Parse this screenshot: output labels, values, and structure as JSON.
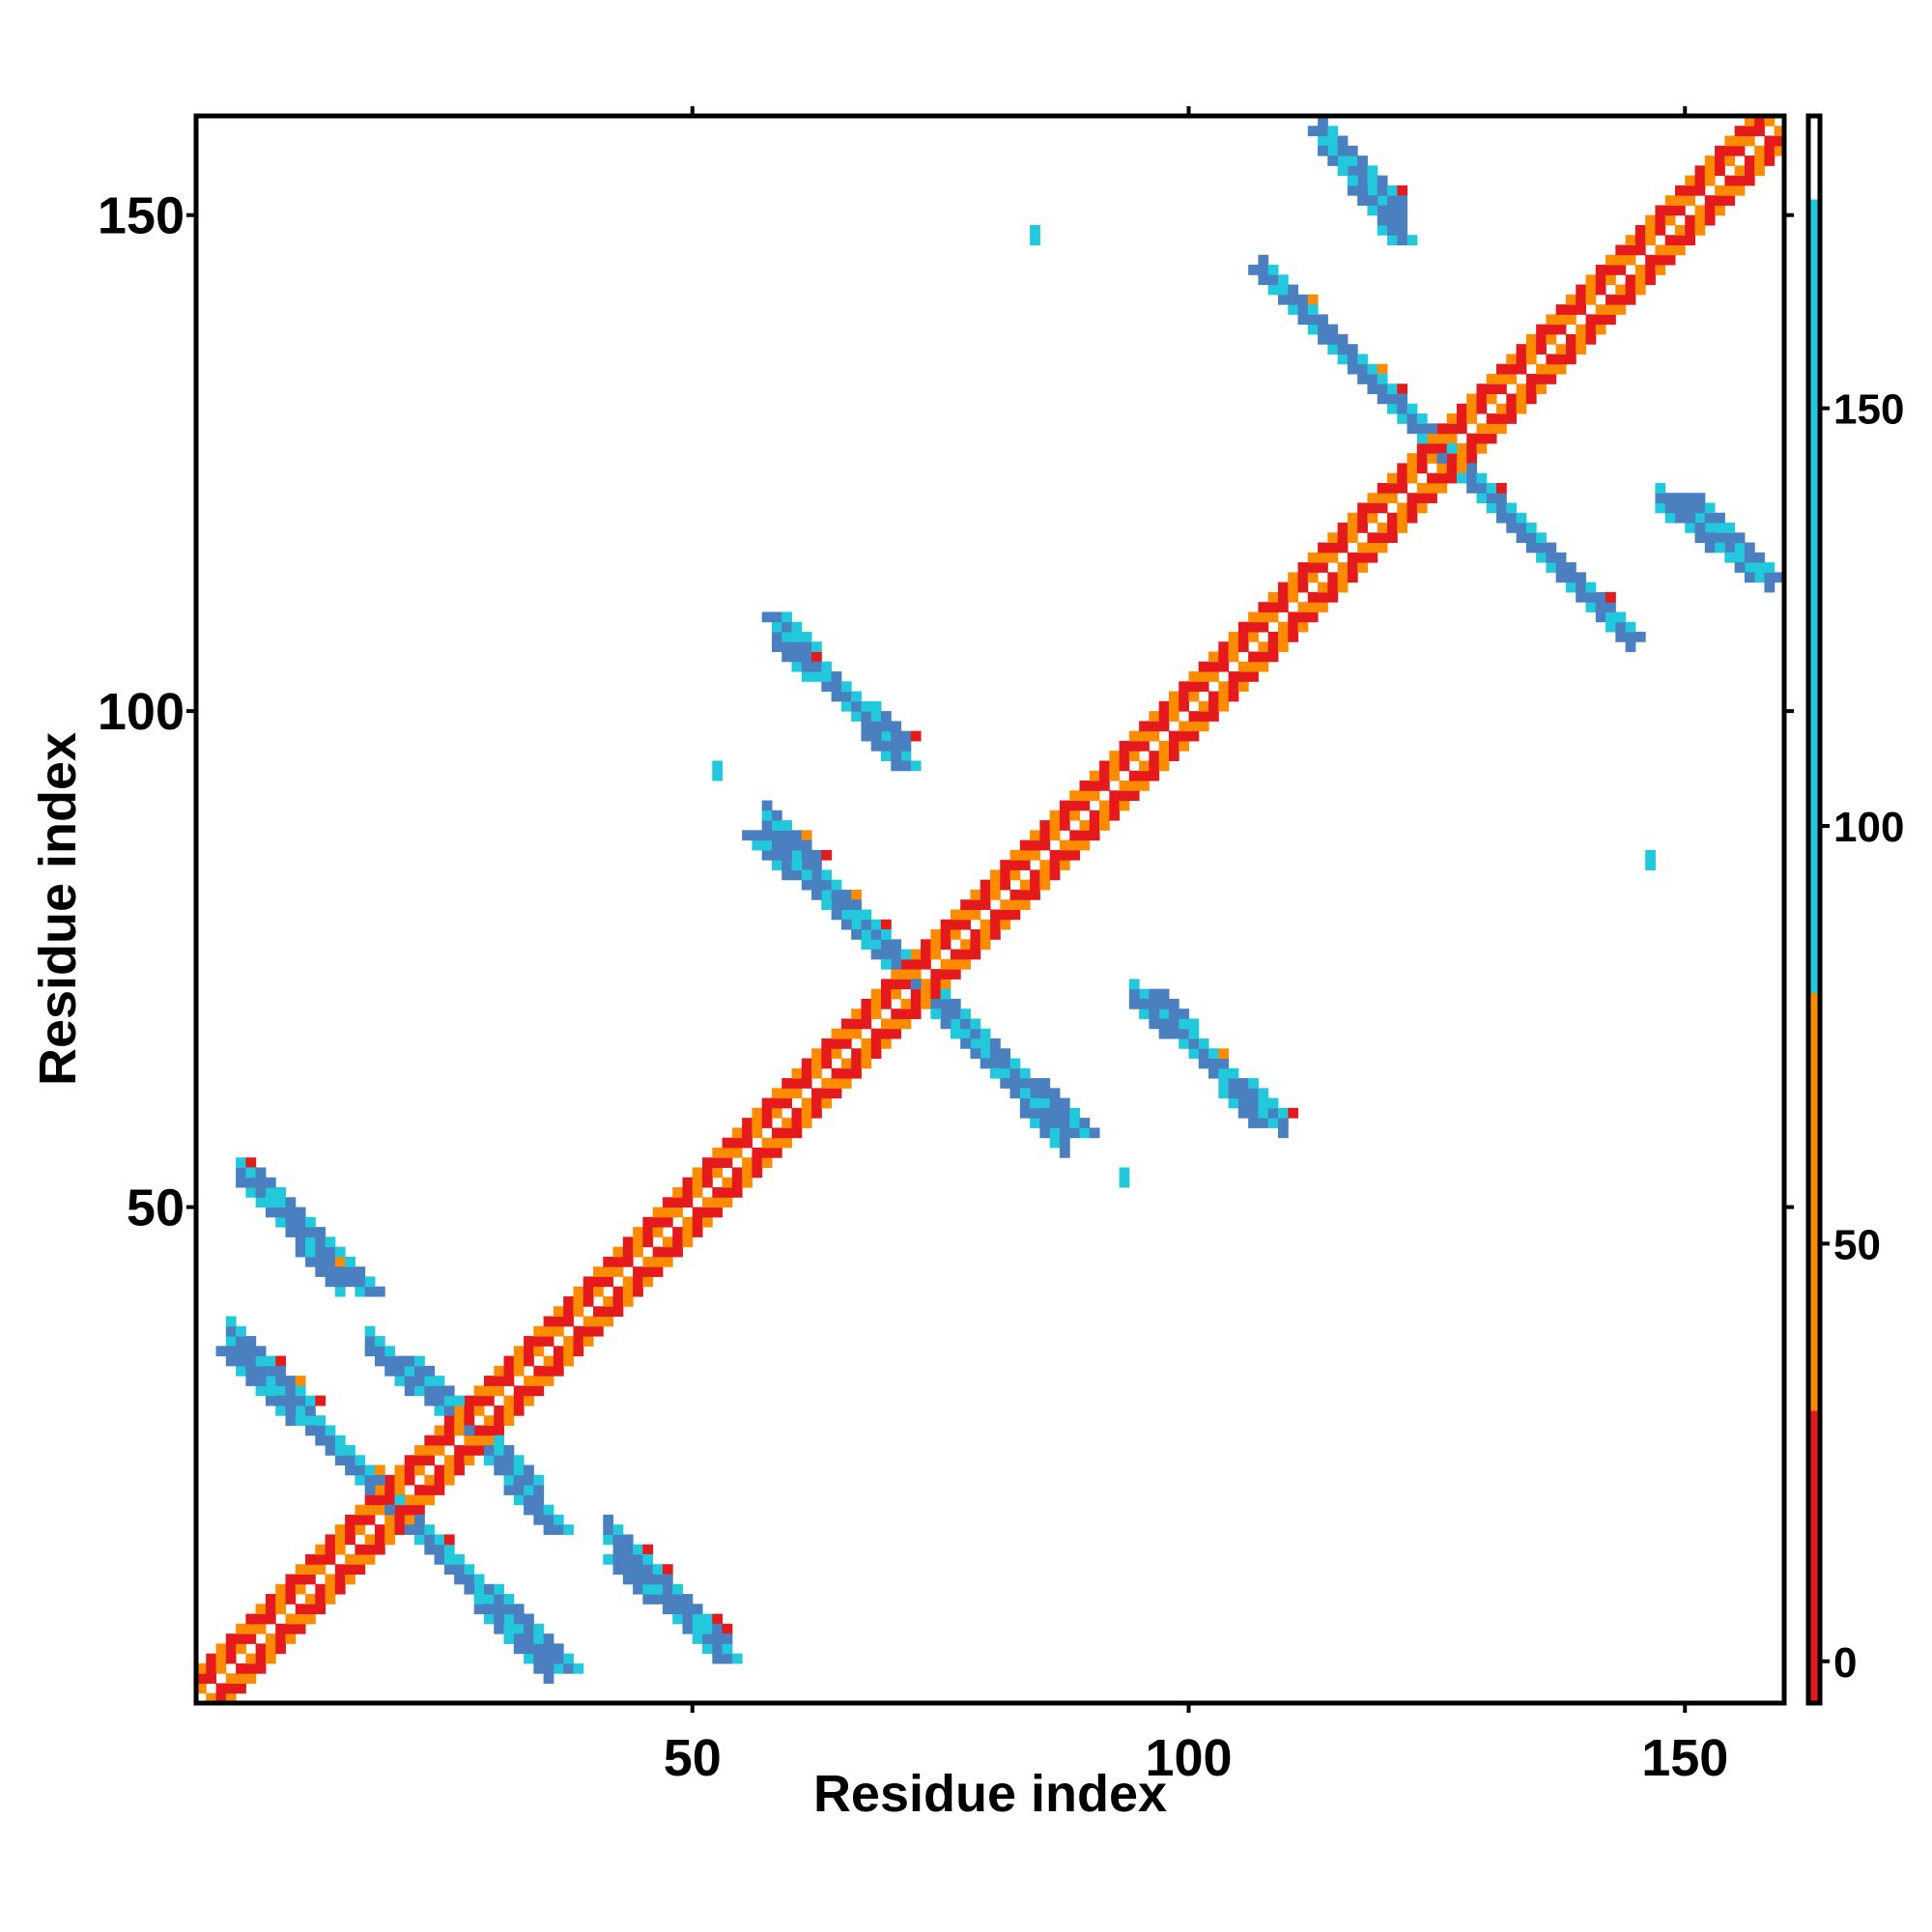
{
  "chart_data": {
    "type": "heatmap",
    "title": "",
    "xlabel": "Residue index",
    "ylabel": "Residue index",
    "xlim": [
      0,
      160
    ],
    "ylim": [
      0,
      160
    ],
    "x_ticks": [
      50,
      100,
      150
    ],
    "y_ticks": [
      50,
      100,
      150
    ],
    "colorbar": {
      "range": [
        -5,
        185
      ],
      "ticks": [
        0,
        50,
        100,
        150
      ],
      "bands": [
        {
          "from": -5,
          "to": 30,
          "color": "#e41a1c"
        },
        {
          "from": 30,
          "to": 80,
          "color": "#ff8c00"
        },
        {
          "from": 80,
          "to": 175,
          "color": "#22c8dc"
        },
        {
          "from": 175,
          "to": 185,
          "color": "#4a7fc0"
        }
      ]
    },
    "legend": "colorbar-right",
    "grid": false,
    "regions": [
      {
        "kind": "diagonal",
        "from": 1,
        "to": 160,
        "description": "contact ridge along i=j, alternating red/orange with white centre"
      },
      {
        "kind": "antiparallel",
        "i": [
          4,
          36
        ],
        "j": [
          38,
          4
        ],
        "value": 160
      },
      {
        "kind": "antiparallel",
        "i": [
          18,
          35
        ],
        "j": [
          37,
          22
        ],
        "value": 160
      },
      {
        "kind": "antiparallel",
        "i": [
          5,
          15
        ],
        "j": [
          54,
          43
        ],
        "value": 160
      },
      {
        "kind": "antiparallel",
        "i": [
          42,
          54
        ],
        "j": [
          18,
          6
        ],
        "value": 160
      },
      {
        "kind": "antiparallel",
        "i": [
          58,
          88
        ],
        "j": [
          90,
          57
        ],
        "value": 160
      },
      {
        "kind": "antiparallel",
        "i": [
          59,
          72
        ],
        "j": [
          108,
          97
        ],
        "value": 160
      },
      {
        "kind": "antiparallel",
        "i": [
          95,
          110
        ],
        "j": [
          72,
          59
        ],
        "value": 160
      },
      {
        "kind": "antiparallel",
        "i": [
          108,
          145
        ],
        "j": [
          145,
          108
        ],
        "value": 160
      },
      {
        "kind": "antiparallel",
        "i": [
          114,
          122
        ],
        "j": [
          159,
          151
        ],
        "value": 160
      },
      {
        "kind": "antiparallel",
        "i": [
          148,
          159
        ],
        "j": [
          122,
          114
        ],
        "value": 120
      },
      {
        "kind": "patch",
        "i": 85,
        "j": 148,
        "value": 120
      },
      {
        "kind": "patch",
        "i": 53,
        "j": 94,
        "value": 120
      },
      {
        "kind": "patch",
        "i": 147,
        "j": 85,
        "value": 150
      },
      {
        "kind": "patch",
        "i": 94,
        "j": 53,
        "value": 150
      }
    ]
  }
}
